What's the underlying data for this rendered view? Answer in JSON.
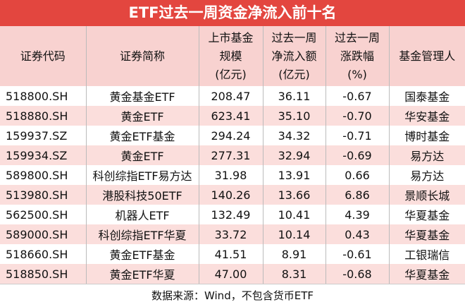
{
  "title": "ETF过去一周资金净流入前十名",
  "table": {
    "header": [
      [
        "证券代码"
      ],
      [
        "证券简称"
      ],
      [
        "上市基金",
        "规模",
        "(亿元)"
      ],
      [
        "过去一周",
        "净流入额",
        "(亿元)"
      ],
      [
        "过去一周",
        "涨跌幅",
        "(%)"
      ],
      [
        "基金管理人"
      ]
    ],
    "rows": [
      [
        "518800.SH",
        "黄金基金ETF",
        "208.47",
        "36.11",
        "-0.67",
        "国泰基金"
      ],
      [
        "518880.SH",
        "黄金ETF",
        "623.41",
        "35.10",
        "-0.70",
        "华安基金"
      ],
      [
        "159937.SZ",
        "黄金ETF基金",
        "294.24",
        "34.32",
        "-0.71",
        "博时基金"
      ],
      [
        "159934.SZ",
        "黄金ETF",
        "277.31",
        "32.94",
        "-0.69",
        "易方达"
      ],
      [
        "589800.SH",
        "科创综指ETF易方达",
        "31.98",
        "13.91",
        "0.66",
        "易方达"
      ],
      [
        "513980.SH",
        "港股科技50ETF",
        "140.26",
        "13.66",
        "6.86",
        "景顺长城"
      ],
      [
        "562500.SH",
        "机器人ETF",
        "132.49",
        "10.41",
        "4.39",
        "华夏基金"
      ],
      [
        "589000.SH",
        "科创综指ETF华夏",
        "33.72",
        "10.14",
        "0.43",
        "华夏基金"
      ],
      [
        "518660.SH",
        "黄金ETF基金",
        "41.51",
        "8.91",
        "-0.61",
        "工银瑞信"
      ],
      [
        "518850.SH",
        "黄金ETF华夏",
        "47.00",
        "8.31",
        "-0.68",
        "华夏基金"
      ]
    ]
  },
  "footer": "数据来源：Wind，不包含货币ETF"
}
